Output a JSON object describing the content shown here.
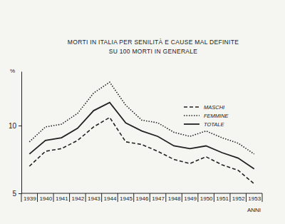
{
  "chart_data": {
    "type": "line",
    "title": "MORTI IN ITALIA PER SENILITÀ E CAUSE MAL DEFINITE",
    "subtitle": "SU 100 MORTI IN GENERALE",
    "y_label": "%",
    "x_label": "ANNI",
    "categories": [
      "1939",
      "1940",
      "1941",
      "1942",
      "1943",
      "1944",
      "1945",
      "1946",
      "1947",
      "1948",
      "1949",
      "1950",
      "1951",
      "1952",
      "1953"
    ],
    "series": [
      {
        "name": "MASCHI",
        "color": "#222222",
        "line_style": "dashed",
        "values": [
          7.0,
          8.1,
          8.3,
          8.9,
          9.9,
          10.6,
          8.8,
          8.6,
          8.1,
          7.5,
          7.2,
          7.7,
          7.1,
          6.7,
          5.7
        ]
      },
      {
        "name": "FEMMINE",
        "color": "#222222",
        "line_style": "dotted",
        "values": [
          8.8,
          9.9,
          10.1,
          10.9,
          12.4,
          13.2,
          11.5,
          10.4,
          10.2,
          9.5,
          9.2,
          9.6,
          9.1,
          8.7,
          7.9
        ]
      },
      {
        "name": "TOTALE",
        "color": "#222222",
        "line_style": "solid",
        "values": [
          7.9,
          8.9,
          9.1,
          9.8,
          11.1,
          11.7,
          10.2,
          9.6,
          9.2,
          8.5,
          8.3,
          8.5,
          8.0,
          7.6,
          6.8
        ]
      }
    ],
    "ylim": [
      5,
      14
    ],
    "yticks": [
      5,
      10
    ],
    "grid": false,
    "legend": "upper right"
  }
}
